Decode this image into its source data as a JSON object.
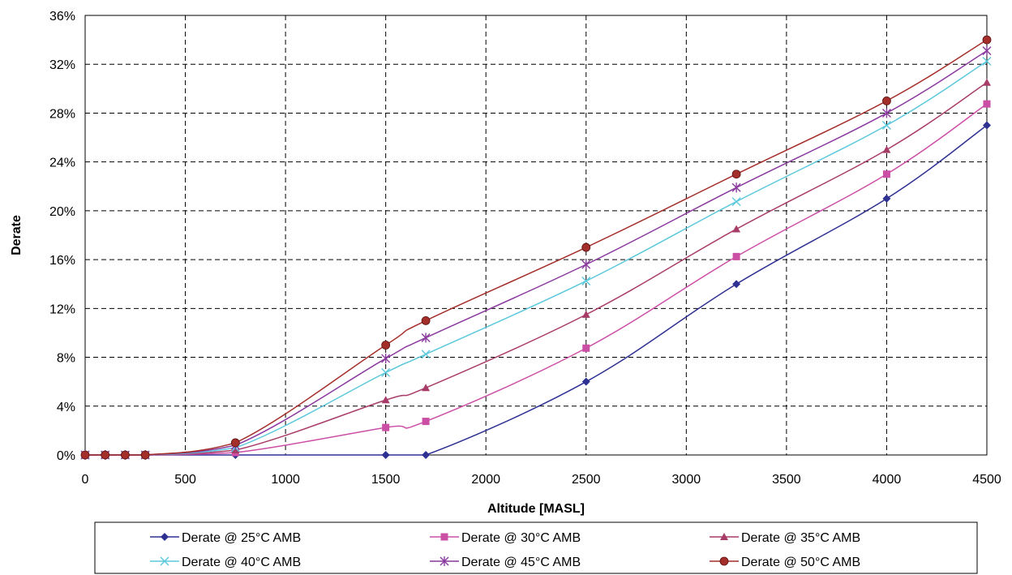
{
  "chart_data": {
    "type": "line",
    "title": "",
    "xlabel": "Altitude [MASL]",
    "ylabel": "Derate",
    "xlim": [
      0,
      4500
    ],
    "ylim": [
      0,
      36
    ],
    "x_ticks": [
      "0",
      "500",
      "1000",
      "1500",
      "2000",
      "2500",
      "3000",
      "3500",
      "4000",
      "4500"
    ],
    "y_ticks": [
      "0%",
      "4%",
      "8%",
      "12%",
      "16%",
      "20%",
      "24%",
      "28%",
      "32%",
      "36%"
    ],
    "grid": true,
    "legend_position": "bottom",
    "series": [
      {
        "name": "Derate @ 25°C AMB",
        "color": "#2e3192",
        "marker": "diamond",
        "x": [
          0,
          100,
          200,
          300,
          750,
          1500,
          1700,
          2500,
          3250,
          4000,
          4500
        ],
        "y": [
          0,
          0,
          0,
          0,
          0,
          0,
          0,
          6,
          14,
          21,
          27
        ]
      },
      {
        "name": "Derate @ 30°C AMB",
        "color": "#cc4fa6",
        "marker": "square",
        "x": [
          0,
          100,
          200,
          300,
          750,
          1500,
          1700,
          2500,
          3250,
          4000,
          4500
        ],
        "y": [
          0,
          0,
          0,
          0,
          0.2,
          2.25,
          2.75,
          8.75,
          16.25,
          23,
          28.75
        ]
      },
      {
        "name": "Derate @ 35°C AMB",
        "color": "#a83c68",
        "marker": "triangle",
        "x": [
          0,
          100,
          200,
          300,
          750,
          1500,
          1700,
          2500,
          3250,
          4000,
          4500
        ],
        "y": [
          0,
          0,
          0,
          0,
          0.4,
          4.5,
          5.5,
          11.5,
          18.5,
          25,
          30.5
        ]
      },
      {
        "name": "Derate @ 40°C AMB",
        "color": "#5bc8dc",
        "marker": "x",
        "x": [
          0,
          100,
          200,
          300,
          750,
          1500,
          1700,
          2500,
          3250,
          4000,
          4500
        ],
        "y": [
          0,
          0,
          0,
          0,
          0.6,
          6.75,
          8.25,
          14.25,
          20.75,
          27,
          32.25
        ]
      },
      {
        "name": "Derate @ 45°C AMB",
        "color": "#8a3a9e",
        "marker": "star",
        "x": [
          0,
          100,
          200,
          300,
          750,
          1500,
          1700,
          2500,
          3250,
          4000,
          4500
        ],
        "y": [
          0,
          0,
          0,
          0,
          0.8,
          7.9,
          9.6,
          15.6,
          21.9,
          28,
          33.1
        ]
      },
      {
        "name": "Derate @ 50°C AMB",
        "color": "#a42f2a",
        "marker": "circle",
        "x": [
          0,
          100,
          200,
          300,
          750,
          1500,
          1700,
          2500,
          3250,
          4000,
          4500
        ],
        "y": [
          0,
          0,
          0,
          0,
          1,
          9,
          11,
          17,
          23,
          29,
          34
        ]
      }
    ]
  }
}
